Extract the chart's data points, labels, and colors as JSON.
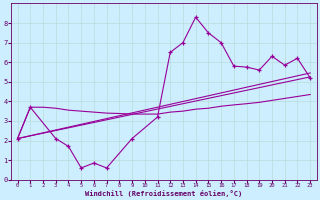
{
  "xlabel": "Windchill (Refroidissement éolien,°C)",
  "bg_color": "#cceeff",
  "grid_color": "#aaddcc",
  "line_color": "#990099",
  "xlim": [
    -0.5,
    23.5
  ],
  "ylim": [
    0,
    9
  ],
  "xticks": [
    0,
    1,
    2,
    3,
    4,
    5,
    6,
    7,
    8,
    9,
    10,
    11,
    12,
    13,
    14,
    15,
    16,
    17,
    18,
    19,
    20,
    21,
    22,
    23
  ],
  "yticks": [
    0,
    1,
    2,
    3,
    4,
    5,
    6,
    7,
    8
  ],
  "data_x": [
    0,
    1,
    3,
    4,
    5,
    6,
    7,
    9,
    11,
    12,
    13,
    14,
    15,
    16,
    17,
    18,
    19,
    20,
    21,
    22,
    23
  ],
  "data_y": [
    2.1,
    3.7,
    2.1,
    1.7,
    0.6,
    0.85,
    0.6,
    2.1,
    3.2,
    6.5,
    7.0,
    8.3,
    7.5,
    7.0,
    5.8,
    5.75,
    5.6,
    6.3,
    5.85,
    6.2,
    5.2
  ],
  "smooth_x": [
    0,
    1,
    2,
    3,
    4,
    5,
    6,
    7,
    8,
    9,
    10,
    11,
    12,
    13,
    14,
    15,
    16,
    17,
    18,
    19,
    20,
    21,
    22,
    23
  ],
  "smooth_y": [
    2.1,
    3.7,
    3.7,
    3.65,
    3.55,
    3.5,
    3.45,
    3.4,
    3.38,
    3.35,
    3.35,
    3.35,
    3.45,
    3.5,
    3.6,
    3.65,
    3.75,
    3.82,
    3.88,
    3.95,
    4.05,
    4.15,
    4.25,
    4.35
  ],
  "trend1_x": [
    0,
    23
  ],
  "trend1_y": [
    2.1,
    5.25
  ],
  "trend2_x": [
    0,
    23
  ],
  "trend2_y": [
    2.1,
    5.45
  ]
}
